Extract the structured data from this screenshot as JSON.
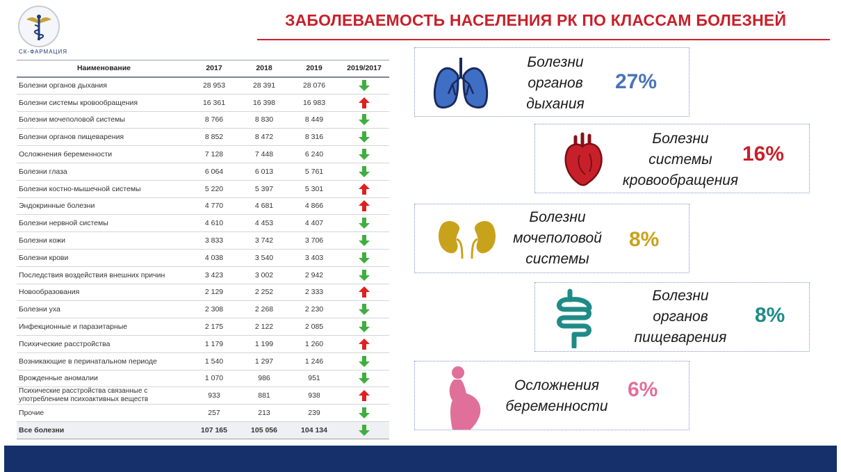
{
  "header": {
    "logo_text": "СК-ФАРМАЦИЯ",
    "title": "ЗАБОЛЕВАЕМОСТЬ НАСЕЛЕНИЯ РК ПО КЛАССАМ БОЛЕЗНЕЙ"
  },
  "table": {
    "headers": [
      "Наименование",
      "2017",
      "2018",
      "2019",
      "2019/2017"
    ],
    "rows": [
      {
        "name": "Болезни органов дыхания",
        "y2017": "28 953",
        "y2018": "28 391",
        "y2019": "28 076",
        "trend": "down"
      },
      {
        "name": "Болезни системы кровообращения",
        "y2017": "16 361",
        "y2018": "16 398",
        "y2019": "16 983",
        "trend": "up"
      },
      {
        "name": "Болезни мочеполовой системы",
        "y2017": "8 766",
        "y2018": "8 830",
        "y2019": "8 449",
        "trend": "down"
      },
      {
        "name": "Болезни органов пищеварения",
        "y2017": "8 852",
        "y2018": "8 472",
        "y2019": "8 316",
        "trend": "down"
      },
      {
        "name": "Осложнения беременности",
        "y2017": "7 128",
        "y2018": "7 448",
        "y2019": "6 240",
        "trend": "down"
      },
      {
        "name": "Болезни глаза",
        "y2017": "6 064",
        "y2018": "6 013",
        "y2019": "5 761",
        "trend": "down"
      },
      {
        "name": "Болезни костно-мышечной системы",
        "y2017": "5 220",
        "y2018": "5 397",
        "y2019": "5 301",
        "trend": "up"
      },
      {
        "name": "Эндокринные болезни",
        "y2017": "4 770",
        "y2018": "4 681",
        "y2019": "4 866",
        "trend": "up"
      },
      {
        "name": "Болезни нервной системы",
        "y2017": "4 610",
        "y2018": "4 453",
        "y2019": "4 407",
        "trend": "down"
      },
      {
        "name": "Болезни кожи",
        "y2017": "3 833",
        "y2018": "3 742",
        "y2019": "3 706",
        "trend": "down"
      },
      {
        "name": "Болезни крови",
        "y2017": "4 038",
        "y2018": "3 540",
        "y2019": "3 403",
        "trend": "down"
      },
      {
        "name": "Последствия воздействия внешних причин",
        "y2017": "3 423",
        "y2018": "3 002",
        "y2019": "2 942",
        "trend": "down"
      },
      {
        "name": "Новообразования",
        "y2017": "2 129",
        "y2018": "2 252",
        "y2019": "2 333",
        "trend": "up"
      },
      {
        "name": "Болезни уха",
        "y2017": "2 308",
        "y2018": "2 268",
        "y2019": "2 230",
        "trend": "down"
      },
      {
        "name": "Инфекционные и паразитарные",
        "y2017": "2 175",
        "y2018": "2 122",
        "y2019": "2 085",
        "trend": "down"
      },
      {
        "name": "Психические расстройства",
        "y2017": "1 179",
        "y2018": "1 199",
        "y2019": "1 260",
        "trend": "up"
      },
      {
        "name": "Возникающие в перинатальном периоде",
        "y2017": "1 540",
        "y2018": "1 297",
        "y2019": "1 246",
        "trend": "down"
      },
      {
        "name": "Врожденные аномалии",
        "y2017": "1 070",
        "y2018": "986",
        "y2019": "951",
        "trend": "down"
      },
      {
        "name": "Психические расстройства связанные с употреблением психоактивных веществ",
        "y2017": "933",
        "y2018": "881",
        "y2019": "938",
        "trend": "up"
      },
      {
        "name": "Прочие",
        "y2017": "257",
        "y2018": "213",
        "y2019": "239",
        "trend": "down"
      }
    ],
    "total": {
      "name": "Все болезни",
      "y2017": "107 165",
      "y2018": "105 056",
      "y2019": "104 134",
      "trend": "down"
    },
    "arrow_colors": {
      "up": "#e02020",
      "down": "#3fae3f"
    }
  },
  "cards": [
    {
      "lines": [
        "Болезни",
        "органов",
        "дыхания"
      ],
      "percent": "27%",
      "color": "#4a74b8",
      "icon": "lungs-icon"
    },
    {
      "lines": [
        "Болезни",
        "системы",
        "кровообращения"
      ],
      "percent": "16%",
      "color": "#c8202a",
      "icon": "heart-icon"
    },
    {
      "lines": [
        "Болезни",
        "мочеполовой",
        "системы"
      ],
      "percent": "8%",
      "color": "#c9a21c",
      "icon": "kidneys-icon"
    },
    {
      "lines": [
        "Болезни",
        "органов",
        "пищеварения"
      ],
      "percent": "8%",
      "color": "#1f8b87",
      "icon": "intestines-icon"
    },
    {
      "lines": [
        "Осложнения",
        "беременности"
      ],
      "percent": "6%",
      "color": "#e0709a",
      "icon": "pregnancy-icon"
    }
  ]
}
